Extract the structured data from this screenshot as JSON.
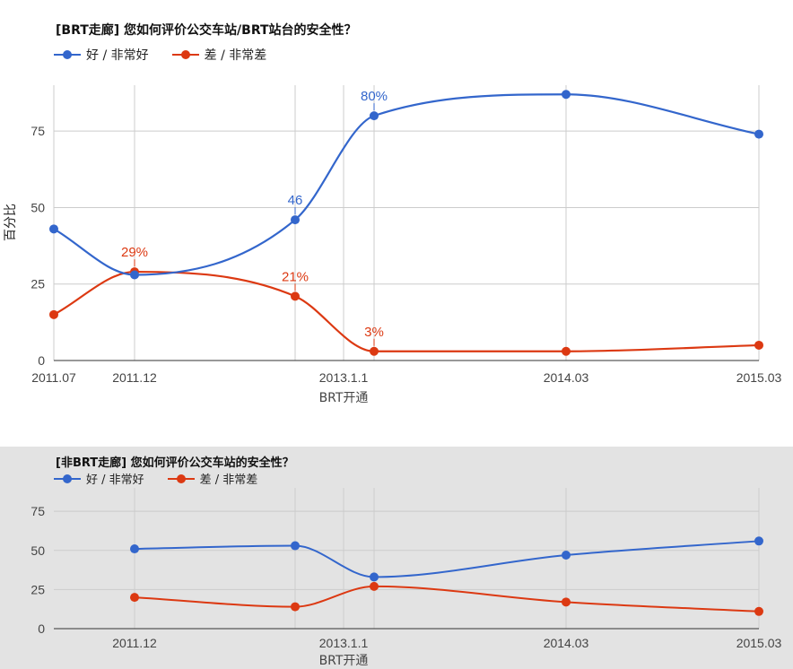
{
  "colors": {
    "good": "#3366cc",
    "bad": "#dc3912"
  },
  "legend": {
    "good": "好 / 非常好",
    "bad": "差 / 非常差"
  },
  "chart_data": [
    {
      "type": "line",
      "title": "[BRT走廊] 您如何评价公交车站/BRT站台的安全性？",
      "ylabel": "百分比",
      "xlabel": "BRT开通",
      "ylim": [
        0,
        90
      ],
      "yticks": [
        0,
        25,
        50,
        75
      ],
      "grid": true,
      "legend_position": "top-left",
      "x": [
        "2011.07",
        "2011.12",
        "2012.10",
        "2013.1.1",
        "2014.03",
        "2015.03"
      ],
      "xticks": [
        "2011.07",
        "2011.12",
        "2013.1.1",
        "2014.03",
        "2015.03"
      ],
      "series": [
        {
          "key": "good",
          "name": "好 / 非常好",
          "values": [
            43,
            28,
            46,
            80,
            87,
            74
          ],
          "labels": [
            "",
            "",
            "46",
            "80%",
            "",
            ""
          ]
        },
        {
          "key": "bad",
          "name": "差 / 非常差",
          "values": [
            15,
            29,
            21,
            3,
            3,
            5
          ],
          "labels": [
            "",
            "29%",
            "21%",
            "3%",
            "",
            ""
          ]
        }
      ]
    },
    {
      "type": "line",
      "title": "[非BRT走廊] 您如何评价公交车站的安全性？",
      "ylabel": "",
      "xlabel": "BRT开通",
      "ylim": [
        0,
        90
      ],
      "yticks": [
        0,
        25,
        50,
        75
      ],
      "grid": true,
      "legend_position": "top-left",
      "x": [
        "2011.12",
        "2012.10",
        "2013.1.1",
        "2014.03",
        "2015.03"
      ],
      "xticks": [
        "2011.12",
        "2013.1.1",
        "2014.03",
        "2015.03"
      ],
      "series": [
        {
          "key": "good",
          "name": "好 / 非常好",
          "values": [
            51,
            53,
            33,
            47,
            56
          ]
        },
        {
          "key": "bad",
          "name": "差 / 非常差",
          "values": [
            20,
            14,
            27,
            17,
            11
          ]
        }
      ]
    }
  ]
}
